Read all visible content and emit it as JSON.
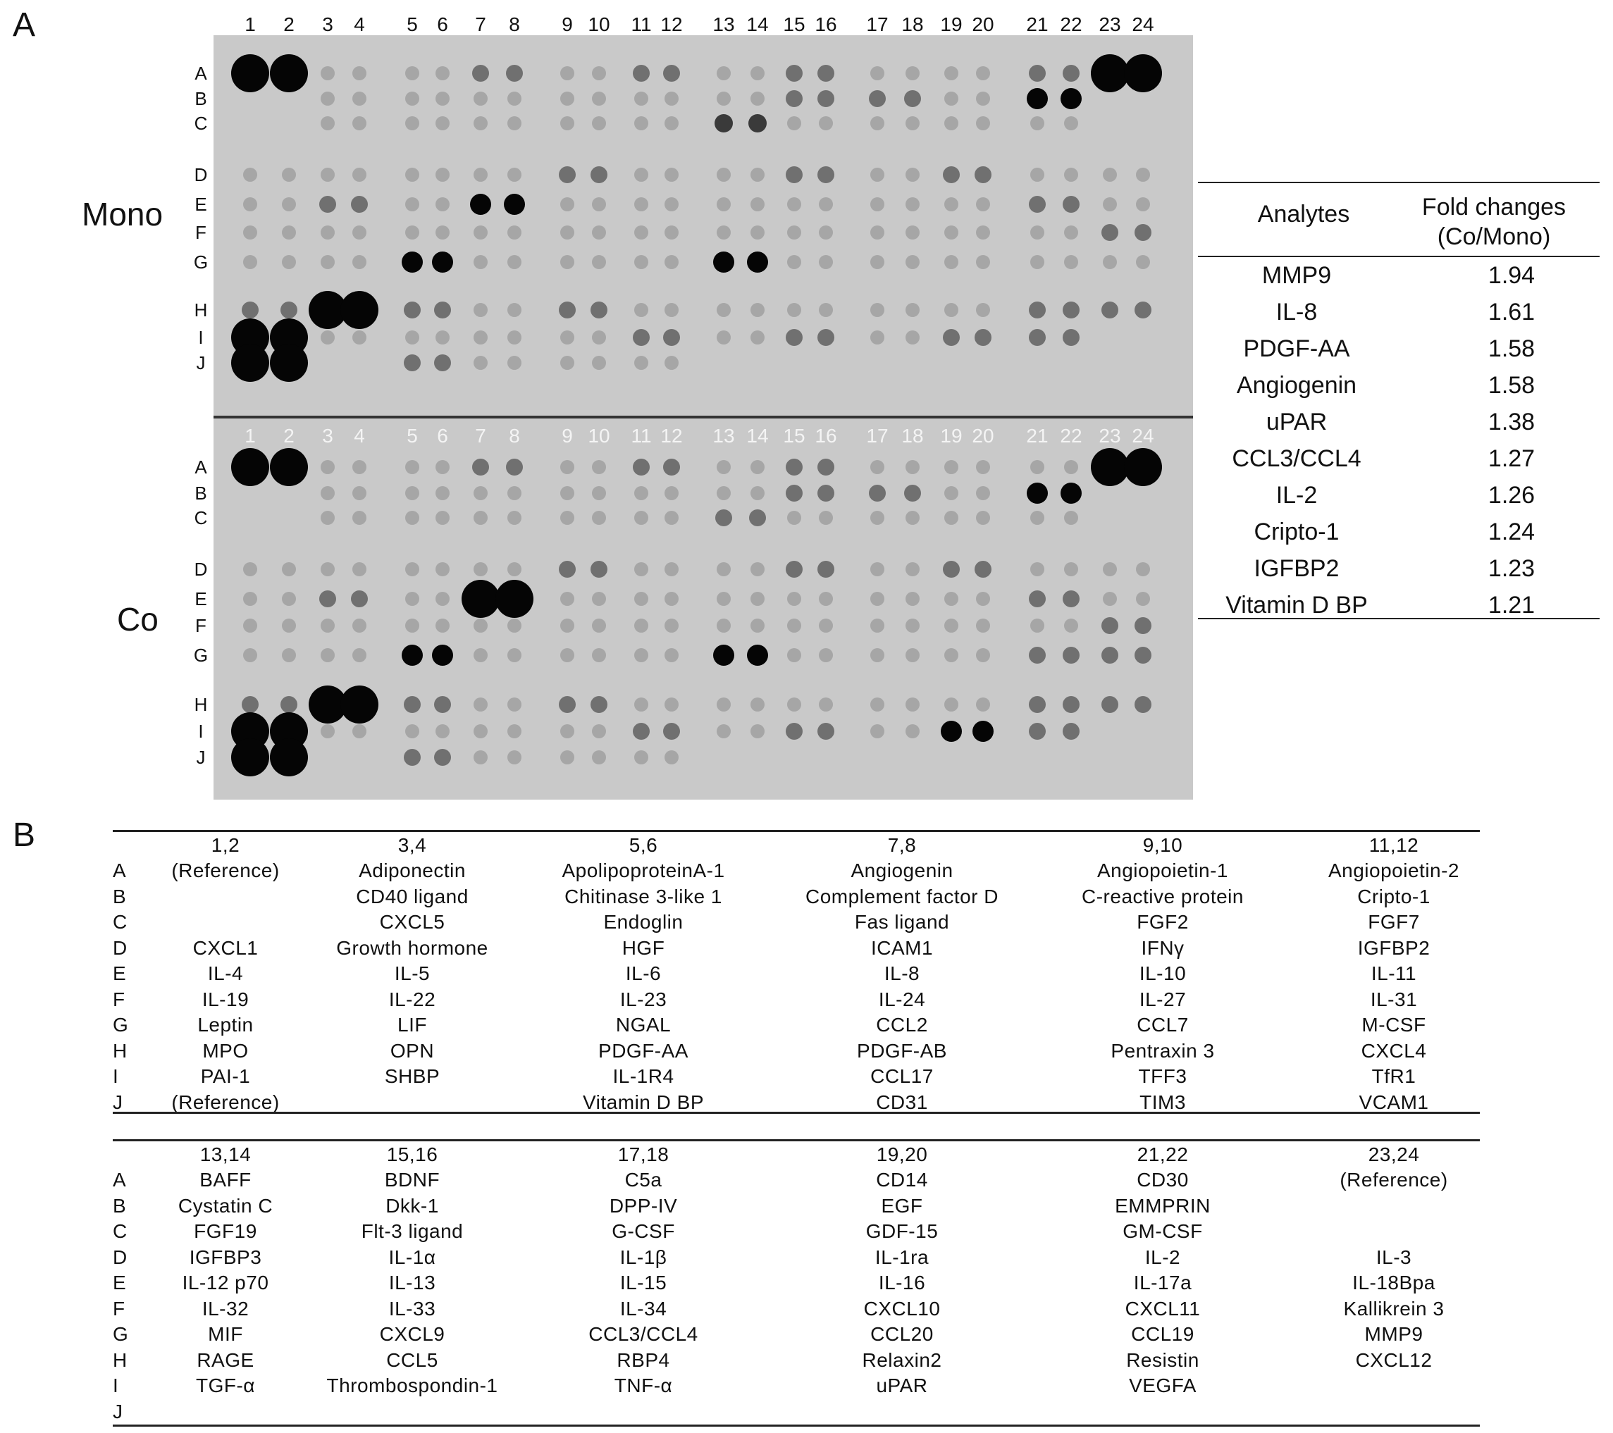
{
  "panel_a": {
    "letter": "A",
    "column_numbers_top": [
      "1",
      "2",
      "3",
      "4",
      "5",
      "6",
      "7",
      "8",
      "9",
      "10",
      "11",
      "12",
      "13",
      "14",
      "15",
      "16",
      "17",
      "18",
      "19",
      "20",
      "21",
      "22",
      "23",
      "24"
    ],
    "row_letters": [
      "A",
      "B",
      "C",
      "D",
      "E",
      "F",
      "G",
      "H",
      "I",
      "J"
    ],
    "panels": [
      {
        "label": "Mono",
        "spots": [
          [
            "5",
            "5",
            "1",
            "1",
            "1",
            "1",
            "2",
            "2",
            "1",
            "1",
            "2",
            "2",
            "1",
            "1",
            "2",
            "2",
            "1",
            "1",
            "1",
            "1",
            "2",
            "2",
            "5",
            "5"
          ],
          [
            "0",
            "0",
            "1",
            "1",
            "1",
            "1",
            "1",
            "1",
            "1",
            "1",
            "1",
            "1",
            "1",
            "1",
            "2",
            "2",
            "2",
            "2",
            "1",
            "1",
            "4",
            "4",
            "0",
            "0"
          ],
          [
            "0",
            "0",
            "1",
            "1",
            "1",
            "1",
            "1",
            "1",
            "1",
            "1",
            "1",
            "1",
            "3",
            "3",
            "1",
            "1",
            "1",
            "1",
            "1",
            "1",
            "1",
            "1",
            "0",
            "0"
          ],
          [
            "1",
            "1",
            "1",
            "1",
            "1",
            "1",
            "1",
            "1",
            "2",
            "2",
            "1",
            "1",
            "1",
            "1",
            "2",
            "2",
            "1",
            "1",
            "2",
            "2",
            "1",
            "1",
            "1",
            "1"
          ],
          [
            "1",
            "1",
            "2",
            "2",
            "1",
            "1",
            "4",
            "4",
            "1",
            "1",
            "1",
            "1",
            "1",
            "1",
            "1",
            "1",
            "1",
            "1",
            "1",
            "1",
            "2",
            "2",
            "1",
            "1"
          ],
          [
            "1",
            "1",
            "1",
            "1",
            "1",
            "1",
            "1",
            "1",
            "1",
            "1",
            "1",
            "1",
            "1",
            "1",
            "1",
            "1",
            "1",
            "1",
            "1",
            "1",
            "1",
            "1",
            "2",
            "2"
          ],
          [
            "1",
            "1",
            "1",
            "1",
            "4",
            "4",
            "1",
            "1",
            "1",
            "1",
            "1",
            "1",
            "4",
            "4",
            "1",
            "1",
            "1",
            "1",
            "1",
            "1",
            "1",
            "1",
            "1",
            "1"
          ],
          [
            "2",
            "2",
            "5",
            "5",
            "2",
            "2",
            "1",
            "1",
            "2",
            "2",
            "1",
            "1",
            "1",
            "1",
            "1",
            "1",
            "1",
            "1",
            "1",
            "1",
            "2",
            "2",
            "2",
            "2"
          ],
          [
            "5",
            "5",
            "1",
            "1",
            "1",
            "1",
            "1",
            "1",
            "1",
            "1",
            "2",
            "2",
            "1",
            "1",
            "2",
            "2",
            "1",
            "1",
            "2",
            "2",
            "2",
            "2",
            "0",
            "0"
          ],
          [
            "5",
            "5",
            "0",
            "0",
            "2",
            "2",
            "1",
            "1",
            "1",
            "1",
            "1",
            "1",
            "0",
            "0",
            "0",
            "0",
            "0",
            "0",
            "0",
            "0",
            "0",
            "0",
            "0",
            "0"
          ]
        ]
      },
      {
        "label": "Co",
        "spots": [
          [
            "5",
            "5",
            "1",
            "1",
            "1",
            "1",
            "2",
            "2",
            "1",
            "1",
            "2",
            "2",
            "1",
            "1",
            "2",
            "2",
            "1",
            "1",
            "1",
            "1",
            "1",
            "1",
            "5",
            "5"
          ],
          [
            "0",
            "0",
            "1",
            "1",
            "1",
            "1",
            "1",
            "1",
            "1",
            "1",
            "1",
            "1",
            "1",
            "1",
            "2",
            "2",
            "2",
            "2",
            "1",
            "1",
            "4",
            "4",
            "0",
            "0"
          ],
          [
            "0",
            "0",
            "1",
            "1",
            "1",
            "1",
            "1",
            "1",
            "1",
            "1",
            "1",
            "1",
            "2",
            "2",
            "1",
            "1",
            "1",
            "1",
            "1",
            "1",
            "1",
            "1",
            "0",
            "0"
          ],
          [
            "1",
            "1",
            "1",
            "1",
            "1",
            "1",
            "1",
            "1",
            "2",
            "2",
            "1",
            "1",
            "1",
            "1",
            "2",
            "2",
            "1",
            "1",
            "2",
            "2",
            "1",
            "1",
            "1",
            "1"
          ],
          [
            "1",
            "1",
            "2",
            "2",
            "1",
            "1",
            "5",
            "5",
            "1",
            "1",
            "1",
            "1",
            "1",
            "1",
            "1",
            "1",
            "1",
            "1",
            "1",
            "1",
            "2",
            "2",
            "1",
            "1"
          ],
          [
            "1",
            "1",
            "1",
            "1",
            "1",
            "1",
            "1",
            "1",
            "1",
            "1",
            "1",
            "1",
            "1",
            "1",
            "1",
            "1",
            "1",
            "1",
            "1",
            "1",
            "1",
            "1",
            "2",
            "2"
          ],
          [
            "1",
            "1",
            "1",
            "1",
            "4",
            "4",
            "1",
            "1",
            "1",
            "1",
            "1",
            "1",
            "4",
            "4",
            "1",
            "1",
            "1",
            "1",
            "1",
            "1",
            "2",
            "2",
            "2",
            "2"
          ],
          [
            "2",
            "2",
            "5",
            "5",
            "2",
            "2",
            "1",
            "1",
            "2",
            "2",
            "1",
            "1",
            "1",
            "1",
            "1",
            "1",
            "1",
            "1",
            "1",
            "1",
            "2",
            "2",
            "2",
            "2"
          ],
          [
            "5",
            "5",
            "1",
            "1",
            "1",
            "1",
            "1",
            "1",
            "1",
            "1",
            "2",
            "2",
            "1",
            "1",
            "2",
            "2",
            "1",
            "1",
            "4",
            "4",
            "2",
            "2",
            "0",
            "0"
          ],
          [
            "5",
            "5",
            "0",
            "0",
            "2",
            "2",
            "1",
            "1",
            "1",
            "1",
            "1",
            "1",
            "0",
            "0",
            "0",
            "0",
            "0",
            "0",
            "0",
            "0",
            "0",
            "0",
            "0",
            "0"
          ]
        ]
      }
    ],
    "fold_table": {
      "header_analytes": "Analytes",
      "header_fold_line1": "Fold changes",
      "header_fold_line2": "(Co/Mono)",
      "rows": [
        {
          "analyte": "MMP9",
          "value": "1.94"
        },
        {
          "analyte": "IL-8",
          "value": "1.61"
        },
        {
          "analyte": "PDGF-AA",
          "value": "1.58"
        },
        {
          "analyte": "Angiogenin",
          "value": "1.58"
        },
        {
          "analyte": "uPAR",
          "value": "1.38"
        },
        {
          "analyte": "CCL3/CCL4",
          "value": "1.27"
        },
        {
          "analyte": "IL-2",
          "value": "1.26"
        },
        {
          "analyte": "Cripto-1",
          "value": "1.24"
        },
        {
          "analyte": "IGFBP2",
          "value": "1.23"
        },
        {
          "analyte": "Vitamin D BP",
          "value": "1.21"
        }
      ]
    }
  },
  "panel_b": {
    "letter": "B",
    "row_letters": [
      "A",
      "B",
      "C",
      "D",
      "E",
      "F",
      "G",
      "H",
      "I",
      "J"
    ],
    "tables": [
      {
        "headers": [
          "1,2",
          "3,4",
          "5,6",
          "7,8",
          "9,10",
          "11,12"
        ],
        "rows": [
          [
            "(Reference)",
            "Adiponectin",
            "ApolipoproteinA-1",
            "Angiogenin",
            "Angiopoietin-1",
            "Angiopoietin-2"
          ],
          [
            "",
            "CD40 ligand",
            "Chitinase 3-like 1",
            "Complement factor D",
            "C-reactive protein",
            "Cripto-1"
          ],
          [
            "",
            "CXCL5",
            "Endoglin",
            "Fas ligand",
            "FGF2",
            "FGF7"
          ],
          [
            "CXCL1",
            "Growth hormone",
            "HGF",
            "ICAM1",
            "IFNγ",
            "IGFBP2"
          ],
          [
            "IL-4",
            "IL-5",
            "IL-6",
            "IL-8",
            "IL-10",
            "IL-11"
          ],
          [
            "IL-19",
            "IL-22",
            "IL-23",
            "IL-24",
            "IL-27",
            "IL-31"
          ],
          [
            "Leptin",
            "LIF",
            "NGAL",
            "CCL2",
            "CCL7",
            "M-CSF"
          ],
          [
            "MPO",
            "OPN",
            "PDGF-AA",
            "PDGF-AB",
            "Pentraxin 3",
            "CXCL4"
          ],
          [
            "PAI-1",
            "SHBP",
            "IL-1R4",
            "CCL17",
            "TFF3",
            "TfR1"
          ],
          [
            "(Reference)",
            "",
            "Vitamin D BP",
            "CD31",
            "TIM3",
            "VCAM1"
          ]
        ]
      },
      {
        "headers": [
          "13,14",
          "15,16",
          "17,18",
          "19,20",
          "21,22",
          "23,24"
        ],
        "rows": [
          [
            "BAFF",
            "BDNF",
            "C5a",
            "CD14",
            "CD30",
            "(Reference)"
          ],
          [
            "Cystatin C",
            "Dkk-1",
            "DPP-IV",
            "EGF",
            "EMMPRIN",
            ""
          ],
          [
            "FGF19",
            "Flt-3 ligand",
            "G-CSF",
            "GDF-15",
            "GM-CSF",
            ""
          ],
          [
            "IGFBP3",
            "IL-1α",
            "IL-1β",
            "IL-1ra",
            "IL-2",
            "IL-3"
          ],
          [
            "IL-12 p70",
            "IL-13",
            "IL-15",
            "IL-16",
            "IL-17a",
            "IL-18Bpa"
          ],
          [
            "IL-32",
            "IL-33",
            "IL-34",
            "CXCL10",
            "CXCL11",
            "Kallikrein 3"
          ],
          [
            "MIF",
            "CXCL9",
            "CCL3/CCL4",
            "CCL20",
            "CCL19",
            "MMP9"
          ],
          [
            "RAGE",
            "CCL5",
            "RBP4",
            "Relaxin2",
            "Resistin",
            "CXCL12"
          ],
          [
            "TGF-α",
            "Thrombospondin-1",
            "TNF-α",
            "uPAR",
            "VEGFA",
            ""
          ],
          [
            "",
            "",
            "",
            "",
            "",
            ""
          ]
        ]
      }
    ]
  }
}
